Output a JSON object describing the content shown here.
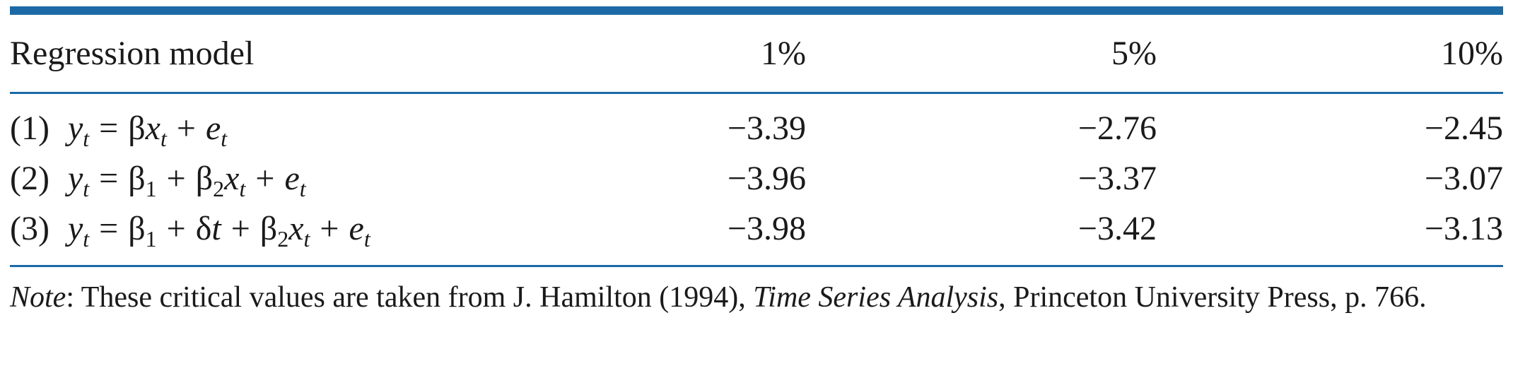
{
  "header": {
    "model": "Regression model",
    "p1": "1%",
    "p5": "5%",
    "p10": "10%"
  },
  "rows": [
    {
      "number": "(1)",
      "p1": "−3.39",
      "p5": "−2.76",
      "p10": "−2.45"
    },
    {
      "number": "(2)",
      "p1": "−3.96",
      "p5": "−3.37",
      "p10": "−3.07"
    },
    {
      "number": "(3)",
      "p1": "−3.98",
      "p5": "−3.42",
      "p10": "−3.13"
    }
  ],
  "note": {
    "label": "Note",
    "text_before": ": These critical values are taken from J. Hamilton (1994), ",
    "book": "Time Series Analysis",
    "text_after": ", Princeton University Press, p. 766."
  },
  "colors": {
    "rule": "#1b6aa6",
    "text": "#1a1a1a"
  }
}
